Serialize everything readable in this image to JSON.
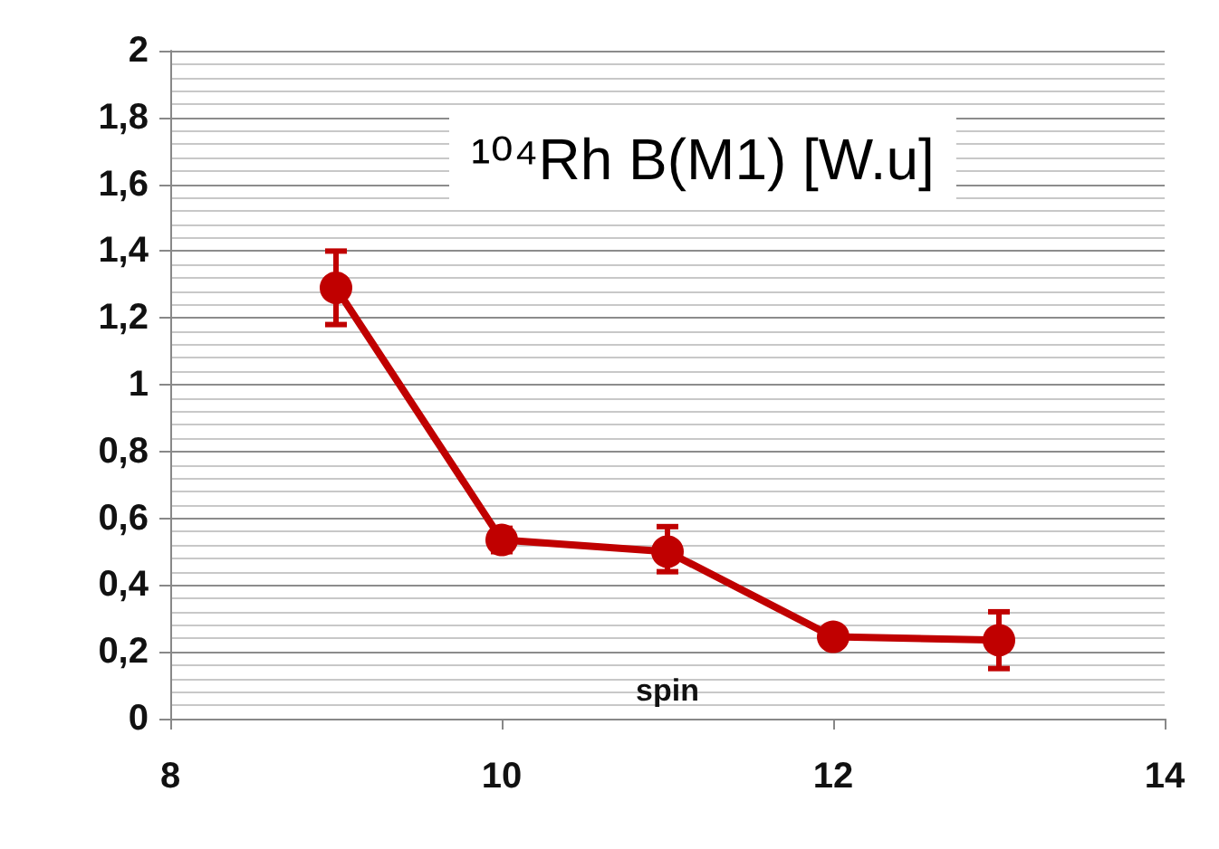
{
  "chart_data": {
    "type": "line",
    "title": "¹⁰⁴Rh B(M1) [W.u]",
    "xlabel": "spin",
    "x": [
      9,
      10,
      11,
      12,
      13
    ],
    "series": [
      {
        "color": "#c00000",
        "values": [
          1.29,
          0.535,
          0.5,
          0.245,
          0.235
        ],
        "errors": [
          [
            1.18,
            1.4
          ],
          [
            0.5,
            0.57
          ],
          [
            0.44,
            0.575
          ],
          null,
          [
            0.15,
            0.32
          ]
        ]
      }
    ],
    "xlim": [
      8,
      14
    ],
    "xticks": [
      8,
      10,
      12,
      14
    ],
    "ylim": [
      0,
      2
    ],
    "yticks": [
      0,
      {
        "value": 0.2,
        "label": "0,2"
      },
      {
        "value": 0.4,
        "label": "0,4"
      },
      {
        "value": 0.6,
        "label": "0,6"
      },
      {
        "value": 0.8,
        "label": "0,8"
      },
      1,
      {
        "value": 1.2,
        "label": "1,2"
      },
      {
        "value": 1.4,
        "label": "1,4"
      },
      {
        "value": 1.6,
        "label": "1,6"
      },
      {
        "value": 1.8,
        "label": "1,8"
      },
      2
    ],
    "grid": "y",
    "marker": "circle",
    "line_style": "solid"
  }
}
